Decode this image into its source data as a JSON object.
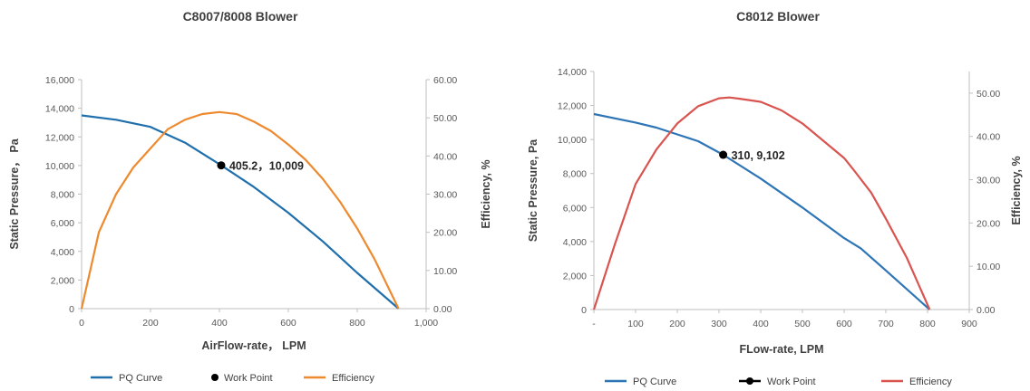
{
  "chart_data": [
    {
      "type": "line",
      "title": "C8007/8008  Blower",
      "xlabel": "AirFlow-rate， LPM",
      "ylabel": "Static Pressure， Pa",
      "y2label": "Efficiency, %",
      "xlim": [
        0,
        1000
      ],
      "ylim": [
        0,
        16000
      ],
      "y2lim": [
        0,
        60
      ],
      "x_ticks": [
        "0",
        "200",
        "400",
        "600",
        "800",
        "1,000"
      ],
      "x_tick_values": [
        0,
        200,
        400,
        600,
        800,
        1000
      ],
      "y_ticks": [
        "0",
        "2,000",
        "4,000",
        "6,000",
        "8,000",
        "10,000",
        "12,000",
        "14,000",
        "16,000"
      ],
      "y_tick_values": [
        0,
        2000,
        4000,
        6000,
        8000,
        10000,
        12000,
        14000,
        16000
      ],
      "y2_ticks": [
        "0.00",
        "10.00",
        "20.00",
        "30.00",
        "40.00",
        "50.00",
        "60.00"
      ],
      "y2_tick_values": [
        0,
        10,
        20,
        30,
        40,
        50,
        60
      ],
      "grid": false,
      "legend_position": "bottom",
      "series": [
        {
          "name": "PQ Curve",
          "axis": "left",
          "color": "#1f6fad",
          "x": [
            0,
            100,
            200,
            300,
            405.2,
            500,
            600,
            700,
            800,
            920
          ],
          "y": [
            13500,
            13200,
            12700,
            11600,
            10009,
            8500,
            6700,
            4700,
            2500,
            0
          ]
        },
        {
          "name": "Work Point",
          "axis": "left",
          "color": "#000000",
          "marker": "dot",
          "x": [
            405.2
          ],
          "y": [
            10009
          ],
          "label": "405.2，10,009"
        },
        {
          "name": "Efficiency",
          "axis": "right",
          "color": "#ed8a2f",
          "x": [
            0,
            50,
            100,
            150,
            200,
            250,
            300,
            350,
            400,
            450,
            500,
            550,
            600,
            650,
            700,
            750,
            800,
            850,
            920
          ],
          "y": [
            0,
            20,
            30,
            37,
            42,
            47,
            49.5,
            51,
            51.5,
            51,
            49,
            46.5,
            43,
            39,
            34,
            28,
            21,
            13,
            0
          ]
        }
      ]
    },
    {
      "type": "line",
      "title": "C8012 Blower",
      "xlabel": "FLow-rate, LPM",
      "ylabel": "Static Pressure, Pa",
      "y2label": "Efficiency, %",
      "xlim": [
        0,
        900
      ],
      "ylim": [
        0,
        14000
      ],
      "y2lim": [
        0,
        55
      ],
      "x_ticks": [
        "-",
        "100",
        "200",
        "300",
        "400",
        "500",
        "600",
        "700",
        "800",
        "900"
      ],
      "x_tick_values": [
        0,
        100,
        200,
        300,
        400,
        500,
        600,
        700,
        800,
        900
      ],
      "y_ticks": [
        "0",
        "2,000",
        "4,000",
        "6,000",
        "8,000",
        "10,000",
        "12,000",
        "14,000"
      ],
      "y_tick_values": [
        0,
        2000,
        4000,
        6000,
        8000,
        10000,
        12000,
        14000
      ],
      "y2_ticks": [
        "0.00",
        "10.00",
        "20.00",
        "30.00",
        "40.00",
        "50.00"
      ],
      "y2_tick_values": [
        0,
        10,
        20,
        30,
        40,
        50
      ],
      "grid": false,
      "legend_position": "bottom",
      "series": [
        {
          "name": "PQ Curve",
          "axis": "left",
          "color": "#2e75b6",
          "x": [
            0,
            100,
            150,
            200,
            250,
            310,
            400,
            500,
            600,
            640,
            700,
            805
          ],
          "y": [
            11500,
            11000,
            10700,
            10300,
            9900,
            9102,
            7700,
            6000,
            4200,
            3600,
            2300,
            0
          ]
        },
        {
          "name": "Work Point",
          "axis": "left",
          "color": "#000000",
          "marker": "dot",
          "x": [
            310
          ],
          "y": [
            9102
          ],
          "label": "310, 9,102"
        },
        {
          "name": "Efficiency",
          "axis": "right",
          "color": "#d9534f",
          "x": [
            0,
            50,
            100,
            150,
            200,
            250,
            300,
            325,
            350,
            400,
            450,
            500,
            550,
            600,
            625,
            665,
            700,
            750,
            805
          ],
          "y": [
            0,
            15,
            29,
            37,
            43,
            47,
            48.8,
            49,
            48.7,
            48,
            46,
            43,
            39,
            35,
            32,
            27,
            21,
            12,
            0
          ]
        }
      ]
    }
  ]
}
